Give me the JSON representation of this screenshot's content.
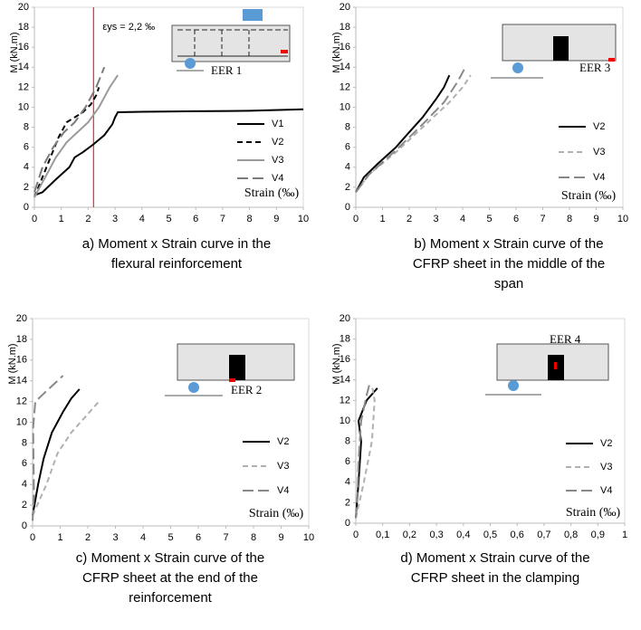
{
  "chart_data": [
    {
      "type": "line",
      "y_label": "M (kN.m)",
      "x_label": "Strain (‰)",
      "caption": [
        "a)  Moment x Strain curve in the",
        "flexural reinforcement"
      ],
      "diagram_label": "EER 1",
      "xlim": [
        0,
        10
      ],
      "ylim": [
        0,
        20
      ],
      "xticks": [
        0,
        1,
        2,
        3,
        4,
        5,
        6,
        7,
        8,
        9,
        10
      ],
      "yticks": [
        0,
        2,
        4,
        6,
        8,
        10,
        12,
        14,
        16,
        18,
        20
      ],
      "reference_line": {
        "x": 2.2,
        "label": "εys = 2,2 ‰",
        "color": "#e8383b"
      },
      "series": [
        {
          "name": "V1",
          "color": "#000000",
          "line_style": "solid",
          "x": [
            0,
            0.3,
            0.8,
            1.3,
            1.5,
            1.8,
            2.2,
            2.6,
            2.9,
            3.0,
            3.1,
            4,
            6,
            8,
            10
          ],
          "values": [
            1.2,
            1.5,
            2.8,
            4,
            5,
            5.5,
            6.3,
            7.2,
            8.3,
            9,
            9.5,
            9.55,
            9.6,
            9.65,
            9.8
          ]
        },
        {
          "name": "V2",
          "color": "#000000",
          "line_style": "dashed",
          "x": [
            0,
            0.3,
            0.6,
            0.9,
            1.2,
            1.5,
            1.8,
            2.1,
            2.3,
            2.4
          ],
          "values": [
            1,
            3,
            5,
            7,
            8.5,
            9,
            9.5,
            10.3,
            11.2,
            12
          ]
        },
        {
          "name": "V3",
          "color": "#9a9a9a",
          "line_style": "solid",
          "x": [
            0,
            0.4,
            0.8,
            1.2,
            1.6,
            2,
            2.4,
            2.8,
            3.1
          ],
          "values": [
            1,
            3,
            5,
            6.5,
            7.5,
            8.5,
            10,
            12,
            13.2
          ]
        },
        {
          "name": "V4",
          "color": "#7a7a7a",
          "line_style": "longdash",
          "x": [
            0,
            0.3,
            0.7,
            1.1,
            1.5,
            1.9,
            2.3,
            2.6
          ],
          "values": [
            1.5,
            4,
            6,
            7.5,
            8.5,
            10,
            12,
            14
          ]
        }
      ]
    },
    {
      "type": "line",
      "y_label": "M (kN.m)",
      "x_label": "Strain (‰)",
      "caption": [
        "b)  Moment x Strain curve of the",
        "CFRP sheet in the middle of the",
        "span"
      ],
      "diagram_label": "EER 3",
      "xlim": [
        0,
        10
      ],
      "ylim": [
        0,
        20
      ],
      "xticks": [
        0,
        1,
        2,
        3,
        4,
        5,
        6,
        7,
        8,
        9,
        10
      ],
      "yticks": [
        0,
        2,
        4,
        6,
        8,
        10,
        12,
        14,
        16,
        18,
        20
      ],
      "series": [
        {
          "name": "V2",
          "color": "#000000",
          "line_style": "solid",
          "x": [
            0,
            0.3,
            0.8,
            1.5,
            2,
            2.5,
            3,
            3.3,
            3.5
          ],
          "values": [
            1.5,
            3,
            4.3,
            6,
            7.5,
            9,
            10.8,
            12,
            13.2
          ]
        },
        {
          "name": "V3",
          "color": "#b0b0b0",
          "line_style": "dashed",
          "x": [
            0,
            0.5,
            1.5,
            2.5,
            3.5,
            4,
            4.3
          ],
          "values": [
            1.5,
            3.3,
            5.5,
            8,
            10.5,
            12,
            13.2
          ]
        },
        {
          "name": "V4",
          "color": "#888888",
          "line_style": "longdash",
          "x": [
            0,
            0.5,
            1.5,
            2.5,
            3.3,
            3.8,
            4.1
          ],
          "values": [
            1.5,
            3.3,
            5.7,
            8.3,
            10.5,
            12.5,
            14
          ]
        }
      ]
    },
    {
      "type": "line",
      "y_label": "M (kN.m)",
      "x_label": "Strain (‰)",
      "caption": [
        "c)  Moment x Strain curve of the",
        "CFRP sheet at the end of the",
        "reinforcement"
      ],
      "diagram_label": "EER 2",
      "xlim": [
        0,
        10
      ],
      "ylim": [
        0,
        20
      ],
      "xticks": [
        0,
        1,
        2,
        3,
        4,
        5,
        6,
        7,
        8,
        9,
        10
      ],
      "yticks": [
        0,
        2,
        4,
        6,
        8,
        10,
        12,
        14,
        16,
        18,
        20
      ],
      "series": [
        {
          "name": "V2",
          "color": "#000000",
          "line_style": "solid",
          "x": [
            0,
            0.2,
            0.4,
            0.7,
            1.1,
            1.4,
            1.7
          ],
          "values": [
            1,
            4,
            6.5,
            9,
            11,
            12.3,
            13.2
          ]
        },
        {
          "name": "V3",
          "color": "#b0b0b0",
          "line_style": "dashed",
          "x": [
            0,
            0.5,
            0.9,
            1.4,
            1.9,
            2.4
          ],
          "values": [
            1,
            4,
            7,
            9,
            10.5,
            12
          ]
        },
        {
          "name": "V4",
          "color": "#888888",
          "line_style": "longdash",
          "x": [
            0,
            0.05,
            0.02,
            0.1,
            0.5,
            1.1
          ],
          "values": [
            0.5,
            3,
            9.5,
            12,
            13,
            14.5
          ]
        }
      ]
    },
    {
      "type": "line",
      "y_label": "M (kN.m)",
      "x_label": "Strain (‰)",
      "caption": [
        "d)  Moment x Strain curve of the",
        "CFRP sheet in the clamping"
      ],
      "diagram_label": "EER 4",
      "xlim": [
        0,
        1
      ],
      "ylim": [
        0,
        20
      ],
      "xticks": [
        0,
        {
          "value": 0.1,
          "label": "0,1"
        },
        {
          "value": 0.2,
          "label": "0,2"
        },
        {
          "value": 0.3,
          "label": "0,3"
        },
        {
          "value": 0.4,
          "label": "0,4"
        },
        {
          "value": 0.5,
          "label": "0,5"
        },
        {
          "value": 0.6,
          "label": "0,6"
        },
        {
          "value": 0.7,
          "label": "0,7"
        },
        {
          "value": 0.8,
          "label": "0,8"
        },
        {
          "value": 0.9,
          "label": "0,9"
        },
        1
      ],
      "yticks": [
        0,
        2,
        4,
        6,
        8,
        10,
        12,
        14,
        16,
        18,
        20
      ],
      "series": [
        {
          "name": "V2",
          "color": "#000000",
          "line_style": "solid",
          "x": [
            0,
            0.01,
            0.02,
            0.01,
            0.04,
            0.08
          ],
          "values": [
            0.5,
            4,
            8,
            10,
            12,
            13.2
          ]
        },
        {
          "name": "V3",
          "color": "#b0b0b0",
          "line_style": "dashed",
          "x": [
            0,
            0.03,
            0.06,
            0.07,
            0.06
          ],
          "values": [
            0.5,
            4,
            8,
            12,
            13.5
          ]
        },
        {
          "name": "V4",
          "color": "#888888",
          "line_style": "longdash",
          "x": [
            0,
            0.005,
            0.01,
            0.02,
            0.04,
            0.05
          ],
          "values": [
            0.5,
            2,
            6,
            10,
            12.5,
            13.5
          ]
        }
      ]
    }
  ]
}
